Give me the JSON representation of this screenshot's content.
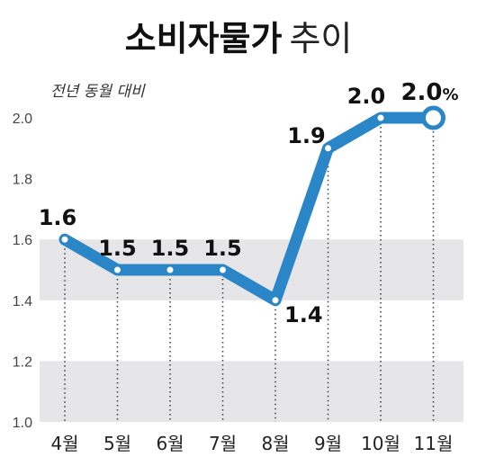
{
  "chart_data": {
    "type": "line",
    "title": "소비자물가",
    "title_suffix": "추이",
    "subtitle": "전년 동월 대비",
    "categories": [
      "4월",
      "5월",
      "6월",
      "7월",
      "8월",
      "9월",
      "10월",
      "11월"
    ],
    "values": [
      1.6,
      1.5,
      1.5,
      1.5,
      1.4,
      1.9,
      2.0,
      2.0
    ],
    "data_labels": [
      "1.6",
      "1.5",
      "1.5",
      "1.5",
      "1.4",
      "1.9",
      "2.0",
      "2.0"
    ],
    "unit": "%",
    "y_ticks": [
      "1.0",
      "1.2",
      "1.4",
      "1.6",
      "1.8",
      "2.0"
    ],
    "ylim": [
      1.0,
      2.0
    ],
    "grid": "alternating horizontal bands",
    "colors": {
      "line": "#2b86c8",
      "band": "#e6e6e8",
      "marker_fill": "#ffffff"
    }
  }
}
